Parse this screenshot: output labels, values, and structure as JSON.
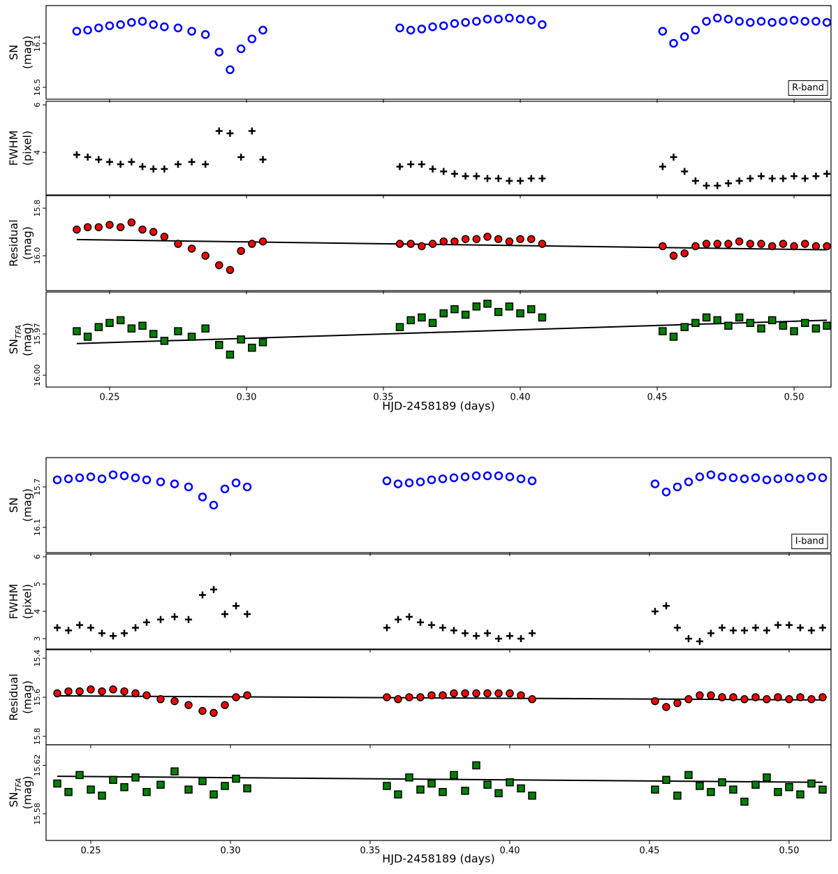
{
  "chart_data": [
    {
      "type": "scatter",
      "xlabel": "HJD-2458189 (days)",
      "band_label": "R-band",
      "x": [
        0.238,
        0.242,
        0.246,
        0.25,
        0.254,
        0.258,
        0.262,
        0.266,
        0.27,
        0.275,
        0.28,
        0.285,
        0.29,
        0.294,
        0.298,
        0.302,
        0.306,
        0.356,
        0.36,
        0.364,
        0.368,
        0.372,
        0.376,
        0.38,
        0.384,
        0.388,
        0.392,
        0.396,
        0.4,
        0.404,
        0.408,
        0.452,
        0.456,
        0.46,
        0.464,
        0.468,
        0.472,
        0.476,
        0.48,
        0.484,
        0.488,
        0.492,
        0.496,
        0.5,
        0.504,
        0.508,
        0.512
      ],
      "xlim": [
        0.2268,
        0.5135
      ],
      "xticks": [
        0.25,
        {
          "value": 0.3,
          "label": "0.30"
        },
        0.35,
        {
          "value": 0.4,
          "label": "0.40"
        },
        0.45,
        {
          "value": 0.5,
          "label": "0.50"
        }
      ],
      "panels": [
        {
          "ylabel": [
            "SN",
            "(mag)"
          ],
          "ylim": [
            16.608,
            15.757
          ],
          "yticks": [
            16.1,
            16.5
          ],
          "series": [
            {
              "marker": "circle-open",
              "color": "#0000ff",
              "values": [
                15.99,
                15.98,
                15.96,
                15.94,
                15.93,
                15.91,
                15.9,
                15.93,
                15.95,
                15.96,
                15.99,
                16.02,
                16.18,
                16.34,
                16.15,
                16.06,
                15.98,
                15.96,
                15.98,
                15.97,
                15.95,
                15.94,
                15.92,
                15.91,
                15.9,
                15.88,
                15.88,
                15.87,
                15.88,
                15.89,
                15.93,
                15.99,
                16.1,
                16.04,
                15.98,
                15.9,
                15.87,
                15.88,
                15.9,
                15.91,
                15.9,
                15.91,
                15.9,
                15.89,
                15.9,
                15.9,
                15.91
              ]
            }
          ]
        },
        {
          "ylabel": [
            "FWHM",
            "(pixel)"
          ],
          "ylim": [
            2.21,
            6.15
          ],
          "yticks": [
            4,
            6
          ],
          "series": [
            {
              "marker": "plus",
              "color": "#000000",
              "values": [
                3.9,
                3.8,
                3.7,
                3.6,
                3.5,
                3.6,
                3.4,
                3.3,
                3.3,
                3.5,
                3.6,
                3.5,
                4.9,
                4.8,
                3.8,
                4.9,
                3.7,
                3.4,
                3.5,
                3.5,
                3.3,
                3.2,
                3.1,
                3.0,
                3.0,
                2.9,
                2.9,
                2.8,
                2.8,
                2.9,
                2.9,
                3.4,
                3.8,
                3.2,
                2.8,
                2.6,
                2.6,
                2.7,
                2.8,
                2.9,
                3.0,
                2.9,
                2.9,
                3.0,
                2.9,
                3.0,
                3.1
              ]
            }
          ]
        },
        {
          "ylabel": [
            "Residual",
            "(mag)"
          ],
          "ylim": [
            16.147,
            15.747
          ],
          "yticks": [
            15.8,
            {
              "value": 16,
              "label": "16.0"
            }
          ],
          "series": [
            {
              "marker": "circle",
              "color": "#ff0000",
              "edgecolor": "#000000",
              "values": [
                15.89,
                15.88,
                15.88,
                15.87,
                15.88,
                15.86,
                15.89,
                15.9,
                15.92,
                15.95,
                15.97,
                16.0,
                16.04,
                16.06,
                15.98,
                15.95,
                15.94,
                15.95,
                15.95,
                15.96,
                15.95,
                15.94,
                15.94,
                15.93,
                15.93,
                15.92,
                15.93,
                15.94,
                15.93,
                15.93,
                15.95,
                15.96,
                16.0,
                15.99,
                15.96,
                15.95,
                15.95,
                15.95,
                15.94,
                15.95,
                15.95,
                15.96,
                15.95,
                15.96,
                15.95,
                15.96,
                15.96
              ]
            }
          ],
          "trend": {
            "color": "#000000",
            "x": [
              0.238,
              0.512
            ],
            "values": [
              15.932,
              15.975
            ]
          }
        },
        {
          "ylabel": [
            "SN",
            "(mag)"
          ],
          "ylabel_sub": "TFA",
          "ylim": [
            16.0086,
            15.9395
          ],
          "yticks": [
            15.97,
            {
              "value": 16,
              "label": "16.00"
            }
          ],
          "series": [
            {
              "marker": "square",
              "color": "#008000",
              "edgecolor": "#000000",
              "values": [
                15.968,
                15.972,
                15.965,
                15.962,
                15.96,
                15.966,
                15.964,
                15.97,
                15.975,
                15.968,
                15.972,
                15.966,
                15.978,
                15.985,
                15.974,
                15.98,
                15.976,
                15.965,
                15.96,
                15.958,
                15.962,
                15.955,
                15.952,
                15.956,
                15.95,
                15.948,
                15.954,
                15.95,
                15.955,
                15.952,
                15.958,
                15.968,
                15.972,
                15.965,
                15.962,
                15.958,
                15.96,
                15.964,
                15.958,
                15.962,
                15.966,
                15.96,
                15.964,
                15.968,
                15.962,
                15.966,
                15.964
              ]
            }
          ],
          "trend": {
            "color": "#000000",
            "x": [
              0.238,
              0.512
            ],
            "values": [
              15.977,
              15.96
            ]
          }
        }
      ]
    },
    {
      "type": "scatter",
      "xlabel": "HJD-2458189 (days)",
      "band_label": "I-band",
      "x": [
        0.238,
        0.242,
        0.246,
        0.25,
        0.254,
        0.258,
        0.262,
        0.266,
        0.27,
        0.275,
        0.28,
        0.285,
        0.29,
        0.294,
        0.298,
        0.302,
        0.306,
        0.356,
        0.36,
        0.364,
        0.368,
        0.372,
        0.376,
        0.38,
        0.384,
        0.388,
        0.392,
        0.396,
        0.4,
        0.404,
        0.408,
        0.452,
        0.456,
        0.46,
        0.464,
        0.468,
        0.472,
        0.476,
        0.48,
        0.484,
        0.488,
        0.492,
        0.496,
        0.5,
        0.504,
        0.508,
        0.512
      ],
      "xlim": [
        0.234,
        0.515
      ],
      "xticks": [
        0.25,
        {
          "value": 0.3,
          "label": "0.30"
        },
        0.35,
        {
          "value": 0.4,
          "label": "0.40"
        },
        0.45,
        {
          "value": 0.5,
          "label": "0.50"
        }
      ],
      "panels": [
        {
          "ylabel": [
            "SN",
            "(mag)"
          ],
          "ylim": [
            16.35,
            15.41
          ],
          "yticks": [
            15.7,
            16.1
          ],
          "series": [
            {
              "marker": "circle-open",
              "color": "#0000ff",
              "values": [
                15.63,
                15.62,
                15.61,
                15.6,
                15.62,
                15.58,
                15.59,
                15.61,
                15.63,
                15.65,
                15.67,
                15.7,
                15.8,
                15.88,
                15.72,
                15.66,
                15.7,
                15.64,
                15.67,
                15.66,
                15.65,
                15.63,
                15.62,
                15.61,
                15.6,
                15.59,
                15.59,
                15.59,
                15.6,
                15.62,
                15.64,
                15.67,
                15.75,
                15.7,
                15.65,
                15.6,
                15.58,
                15.6,
                15.61,
                15.62,
                15.61,
                15.63,
                15.62,
                15.61,
                15.62,
                15.6,
                15.61
              ]
            }
          ]
        },
        {
          "ylabel": [
            "FWHM",
            "(pixel)"
          ],
          "ylim": [
            2.62,
            6.1
          ],
          "yticks": [
            3,
            4,
            5,
            6
          ],
          "series": [
            {
              "marker": "plus",
              "color": "#000000",
              "values": [
                3.4,
                3.3,
                3.5,
                3.4,
                3.2,
                3.1,
                3.2,
                3.4,
                3.6,
                3.7,
                3.8,
                3.7,
                4.6,
                4.8,
                3.9,
                4.2,
                3.9,
                3.4,
                3.7,
                3.8,
                3.6,
                3.5,
                3.4,
                3.3,
                3.2,
                3.1,
                3.2,
                3.0,
                3.1,
                3.0,
                3.2,
                4.0,
                4.2,
                3.4,
                3.0,
                2.9,
                3.2,
                3.4,
                3.3,
                3.3,
                3.4,
                3.3,
                3.5,
                3.5,
                3.4,
                3.3,
                3.4
              ]
            }
          ]
        },
        {
          "ylabel": [
            "Residual",
            "(mag)"
          ],
          "ylim": [
            15.843,
            15.357
          ],
          "yticks": [
            15.4,
            15.6,
            15.8
          ],
          "series": [
            {
              "marker": "circle",
              "color": "#ff0000",
              "edgecolor": "#000000",
              "values": [
                15.58,
                15.57,
                15.57,
                15.56,
                15.57,
                15.56,
                15.57,
                15.58,
                15.59,
                15.61,
                15.62,
                15.64,
                15.67,
                15.68,
                15.64,
                15.6,
                15.59,
                15.6,
                15.61,
                15.6,
                15.6,
                15.59,
                15.59,
                15.58,
                15.58,
                15.58,
                15.58,
                15.58,
                15.58,
                15.59,
                15.61,
                15.62,
                15.65,
                15.63,
                15.61,
                15.59,
                15.59,
                15.6,
                15.6,
                15.61,
                15.6,
                15.61,
                15.6,
                15.61,
                15.6,
                15.61,
                15.6
              ]
            }
          ],
          "trend": {
            "color": "#000000",
            "x": [
              0.238,
              0.512
            ],
            "values": [
              15.593,
              15.614
            ]
          }
        },
        {
          "ylabel": [
            "SN",
            "(mag)"
          ],
          "ylabel_sub": "TFA",
          "ylim": [
            15.558,
            15.637
          ],
          "yticks": [
            15.58,
            15.62
          ],
          "series": [
            {
              "marker": "square",
              "color": "#008000",
              "edgecolor": "#000000",
              "values": [
                15.605,
                15.598,
                15.612,
                15.6,
                15.595,
                15.608,
                15.602,
                15.61,
                15.598,
                15.604,
                15.615,
                15.6,
                15.607,
                15.596,
                15.603,
                15.609,
                15.601,
                15.603,
                15.596,
                15.61,
                15.6,
                15.605,
                15.598,
                15.612,
                15.599,
                15.62,
                15.604,
                15.597,
                15.606,
                15.601,
                15.595,
                15.6,
                15.608,
                15.595,
                15.612,
                15.603,
                15.598,
                15.606,
                15.6,
                15.59,
                15.604,
                15.61,
                15.598,
                15.602,
                15.596,
                15.605,
                15.6
              ]
            }
          ],
          "trend": {
            "color": "#000000",
            "x": [
              0.238,
              0.512
            ],
            "values": [
              15.611,
              15.606
            ]
          }
        }
      ]
    }
  ]
}
